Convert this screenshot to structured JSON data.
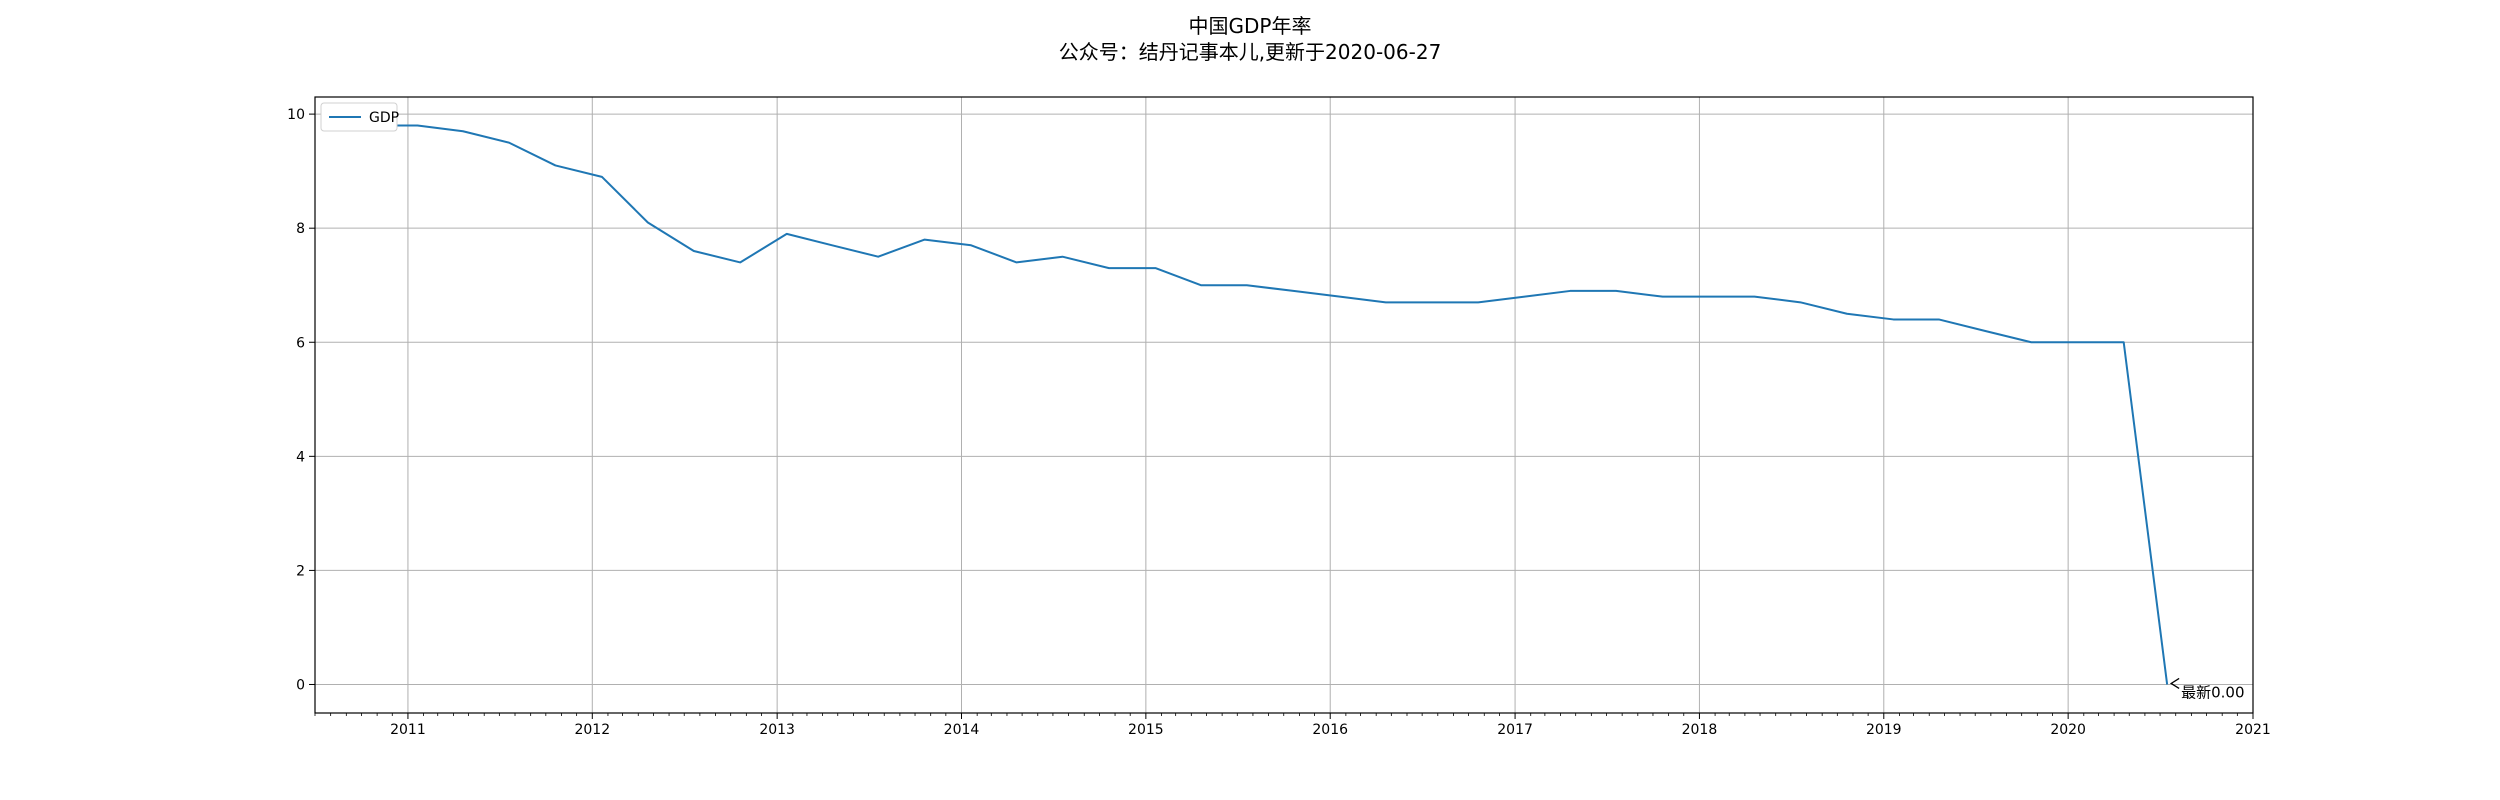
{
  "chart_data": {
    "type": "line",
    "title": "中国GDP年率",
    "subtitle": "公众号：结丹记事本儿,更新于2020-06-27",
    "xlabel": "",
    "ylabel": "",
    "xlim": [
      "2010-07-01",
      "2021-01-01"
    ],
    "ylim": [
      -0.5,
      10.3
    ],
    "x_ticks": [
      "2011",
      "2012",
      "2013",
      "2014",
      "2015",
      "2016",
      "2017",
      "2018",
      "2019",
      "2020",
      "2021"
    ],
    "y_ticks": [
      "0",
      "2",
      "4",
      "6",
      "8",
      "10"
    ],
    "grid": true,
    "legend": {
      "position": "top-left",
      "entries": [
        "GDP"
      ]
    },
    "series": [
      {
        "name": "GDP",
        "color": "#1f77b4",
        "x": [
          "2010-10-20",
          "2011-01-20",
          "2011-04-20",
          "2011-07-20",
          "2011-10-20",
          "2012-01-20",
          "2012-04-20",
          "2012-07-20",
          "2012-10-20",
          "2013-01-20",
          "2013-04-20",
          "2013-07-20",
          "2013-10-20",
          "2014-01-20",
          "2014-04-20",
          "2014-07-20",
          "2014-10-20",
          "2015-01-20",
          "2015-04-20",
          "2015-07-20",
          "2015-10-20",
          "2016-01-20",
          "2016-04-20",
          "2016-07-20",
          "2016-10-20",
          "2017-01-20",
          "2017-04-20",
          "2017-07-20",
          "2017-10-20",
          "2018-01-20",
          "2018-04-20",
          "2018-07-20",
          "2018-10-20",
          "2019-01-20",
          "2019-04-20",
          "2019-07-20",
          "2019-10-20",
          "2020-01-20",
          "2020-04-20",
          "2020-07-15"
        ],
        "values": [
          9.8,
          9.8,
          9.7,
          9.5,
          9.1,
          8.9,
          8.1,
          7.6,
          7.4,
          7.9,
          7.7,
          7.5,
          7.8,
          7.7,
          7.4,
          7.5,
          7.3,
          7.3,
          7.0,
          7.0,
          6.9,
          6.8,
          6.7,
          6.7,
          6.7,
          6.8,
          6.9,
          6.9,
          6.8,
          6.8,
          6.8,
          6.7,
          6.5,
          6.4,
          6.4,
          6.2,
          6.0,
          6.0,
          6.0,
          0.0
        ]
      }
    ],
    "annotation": {
      "text": "最新0.00",
      "x": "2020-07-15",
      "y": 0.0
    }
  }
}
